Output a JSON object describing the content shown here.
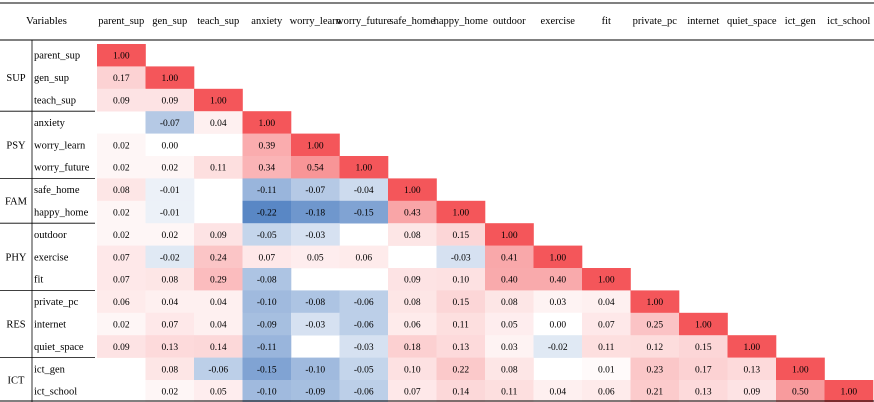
{
  "chart_data": {
    "type": "heatmap",
    "corner_label": "Variables",
    "columns": [
      "parent_sup",
      "gen_sup",
      "teach_sup",
      "anxiety",
      "worry_learn",
      "worry_future",
      "safe_home",
      "happy_home",
      "outdoor",
      "exercise",
      "fit",
      "private_pc",
      "internet",
      "quiet_space",
      "ict_gen",
      "ict_school"
    ],
    "groups": [
      {
        "name": "SUP",
        "rows": [
          "parent_sup",
          "gen_sup",
          "teach_sup"
        ]
      },
      {
        "name": "PSY",
        "rows": [
          "anxiety",
          "worry_learn",
          "worry_future"
        ]
      },
      {
        "name": "FAM",
        "rows": [
          "safe_home",
          "happy_home"
        ]
      },
      {
        "name": "PHY",
        "rows": [
          "outdoor",
          "exercise",
          "fit"
        ]
      },
      {
        "name": "RES",
        "rows": [
          "private_pc",
          "internet",
          "quiet_space"
        ]
      },
      {
        "name": "ICT",
        "rows": [
          "ict_gen",
          "ict_school"
        ]
      }
    ],
    "values": [
      [
        "1.00"
      ],
      [
        "0.17",
        "1.00"
      ],
      [
        "0.09",
        "0.09",
        "1.00"
      ],
      [
        "",
        "-0.07",
        "0.04",
        "1.00"
      ],
      [
        "0.02",
        "0.00",
        "",
        "0.39",
        "1.00"
      ],
      [
        "0.02",
        "0.02",
        "0.11",
        "0.34",
        "0.54",
        "1.00"
      ],
      [
        "0.08",
        "-0.01",
        "",
        "-0.11",
        "-0.07",
        "-0.04",
        "1.00"
      ],
      [
        "0.02",
        "-0.01",
        "",
        "-0.22",
        "-0.18",
        "-0.15",
        "0.43",
        "1.00"
      ],
      [
        "0.02",
        "0.02",
        "0.09",
        "-0.05",
        "-0.03",
        "",
        "0.08",
        "0.15",
        "1.00"
      ],
      [
        "0.07",
        "-0.02",
        "0.24",
        "0.07",
        "0.05",
        "0.06",
        "",
        "-0.03",
        "0.41",
        "1.00"
      ],
      [
        "0.07",
        "0.08",
        "0.29",
        "-0.08",
        "",
        "",
        "0.09",
        "0.10",
        "0.40",
        "0.40",
        "1.00"
      ],
      [
        "0.06",
        "0.04",
        "0.04",
        "-0.10",
        "-0.08",
        "-0.06",
        "0.08",
        "0.15",
        "0.08",
        "0.03",
        "0.04",
        "1.00"
      ],
      [
        "0.02",
        "0.07",
        "0.04",
        "-0.09",
        "-0.03",
        "-0.06",
        "0.06",
        "0.11",
        "0.05",
        "0.00",
        "0.07",
        "0.25",
        "1.00"
      ],
      [
        "0.09",
        "0.13",
        "0.14",
        "-0.11",
        "",
        "-0.03",
        "0.18",
        "0.13",
        "0.03",
        "-0.02",
        "0.11",
        "0.12",
        "0.15",
        "1.00"
      ],
      [
        "",
        "0.08",
        "-0.06",
        "-0.15",
        "-0.10",
        "-0.05",
        "0.10",
        "0.22",
        "0.08",
        "",
        "0.01",
        "0.23",
        "0.17",
        "0.13",
        "1.00"
      ],
      [
        "",
        "0.02",
        "0.05",
        "-0.10",
        "-0.09",
        "-0.06",
        "0.07",
        "0.14",
        "0.11",
        "0.04",
        "0.06",
        "0.21",
        "0.13",
        "0.09",
        "0.50",
        "1.00"
      ]
    ],
    "color_scale": {
      "negative": "#4a7cc0",
      "neutral": "#ffffff",
      "positive": "#f4565a"
    },
    "value_range": [
      -0.25,
      1.0
    ]
  }
}
